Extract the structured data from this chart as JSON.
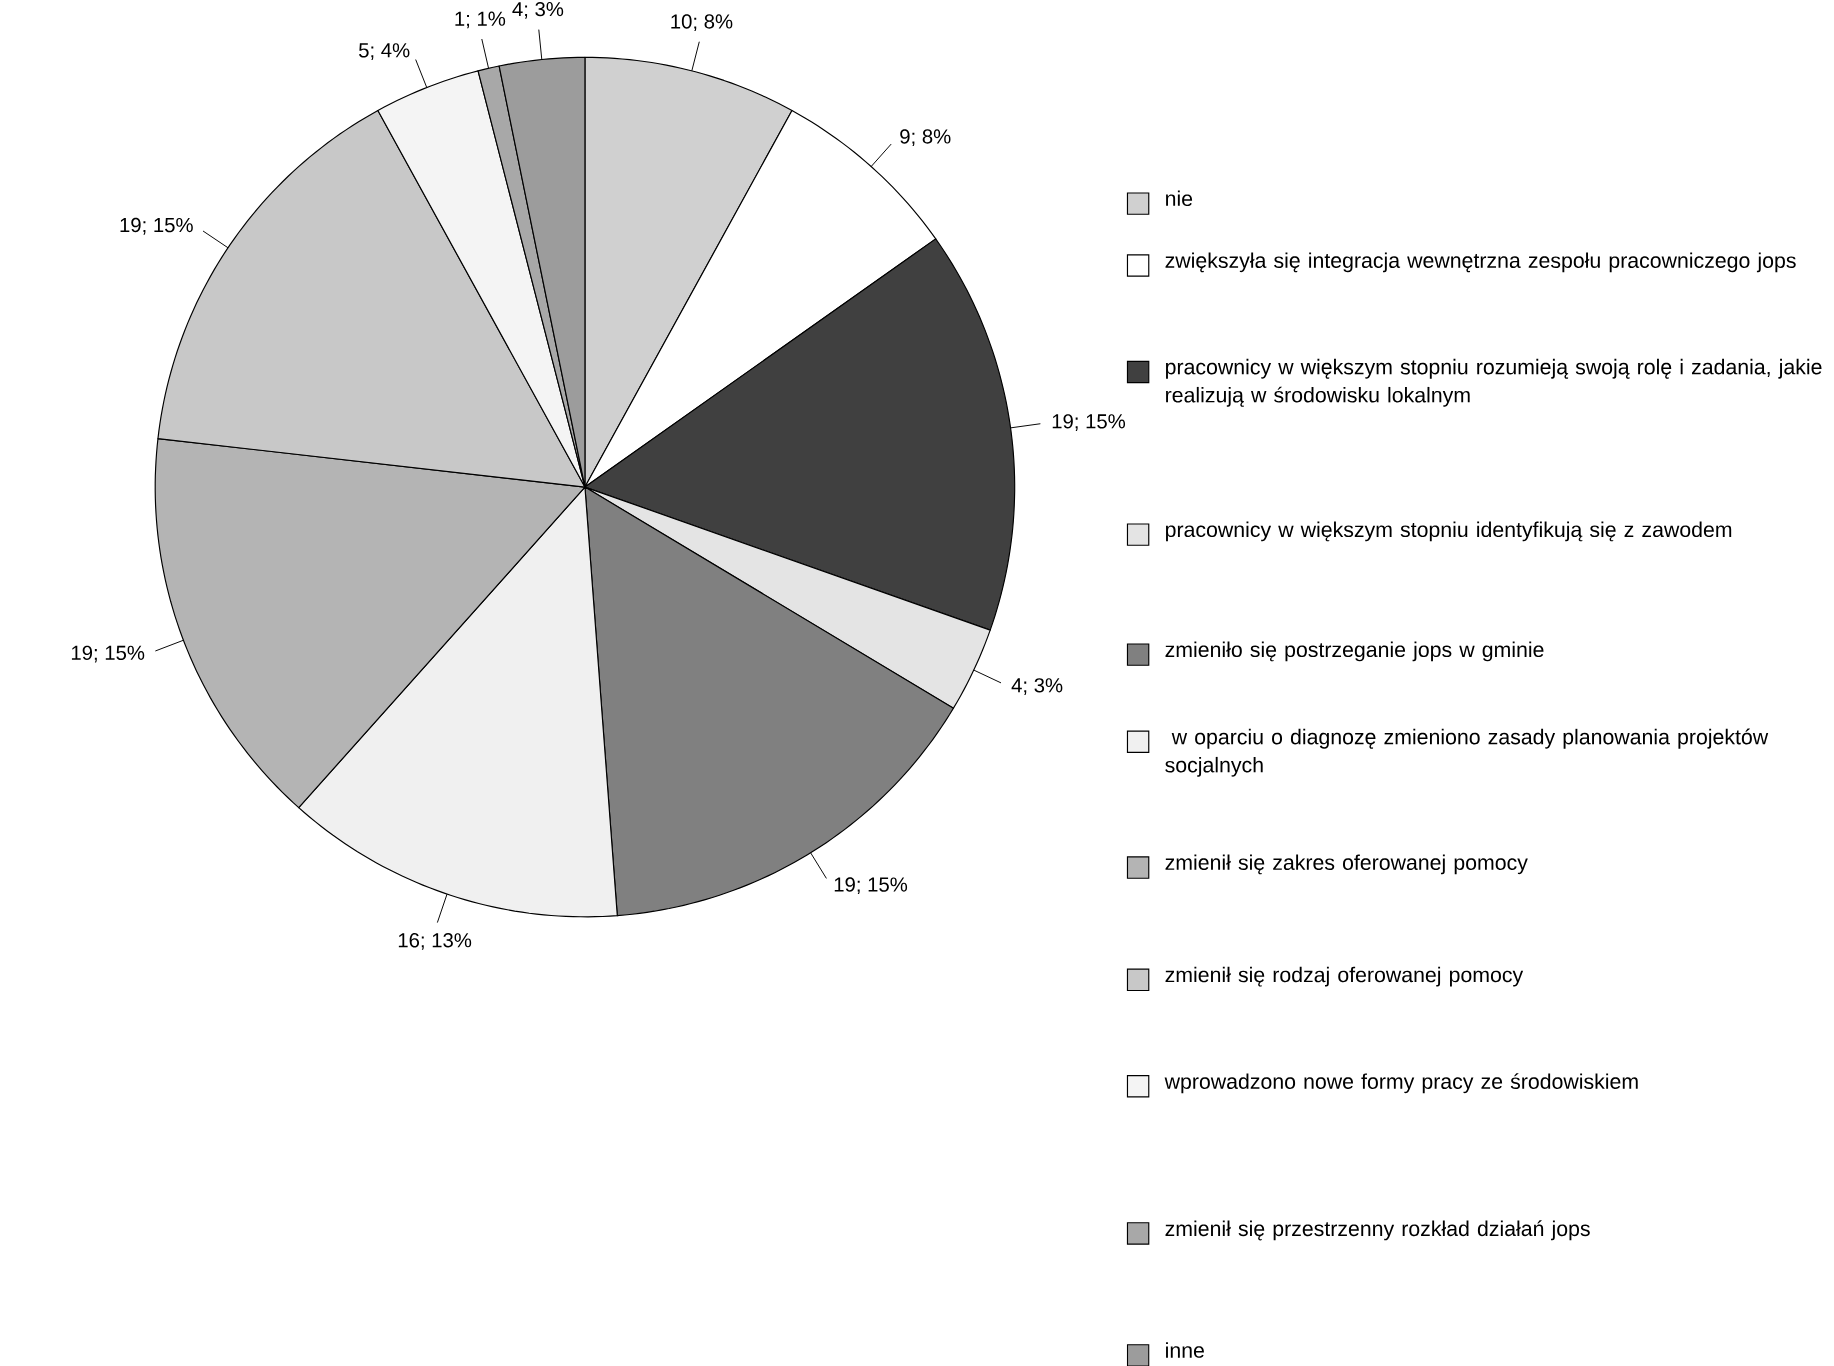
{
  "chart_data": {
    "type": "pie",
    "categories": [
      "nie",
      "zwiększyła się  integracja wewnętrzna zespołu pracowniczego jops",
      "pracownicy w większym stopniu  rozumieją swoją rolę i zadania, jakie realizują w środowisku lokalnym",
      "pracownicy w większym stopniu identyfikują się z zawodem",
      "zmieniło się postrzeganie jops w gminie",
      " w oparciu o diagnozę zmieniono zasady planowania projektów socjalnych",
      "zmienił się zakres oferowanej pomocy",
      "zmienił się  rodzaj oferowanej pomocy",
      "wprowadzono nowe formy pracy ze środowiskiem",
      "zmienił się przestrzenny rozkład działań jops",
      "inne"
    ],
    "values": [
      10,
      9,
      19,
      4,
      19,
      16,
      19,
      19,
      5,
      1,
      4
    ],
    "value_labels": [
      "10; 8%",
      "9; 8%",
      "19; 15%",
      "4; 3%",
      "19; 15%",
      "16; 13%",
      "19; 15%",
      "19; 15%",
      "5; 4%",
      "1; 1%",
      "4; 3%"
    ],
    "colors": [
      "#d0d0d0",
      "#ffffff",
      "#404040",
      "#e4e4e4",
      "#808080",
      "#f0f0f0",
      "#b4b4b4",
      "#c8c8c8",
      "#f4f4f4",
      "#a8a8a8",
      "#9c9c9c"
    ],
    "legend": "right"
  }
}
